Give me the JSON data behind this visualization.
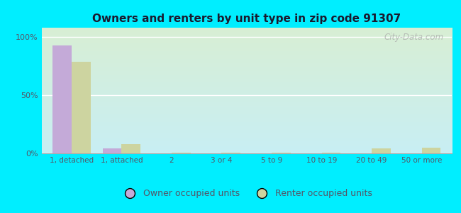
{
  "title": "Owners and renters by unit type in zip code 91307",
  "categories": [
    "1, detached",
    "1, attached",
    "2",
    "3 or 4",
    "5 to 9",
    "10 to 19",
    "20 to 49",
    "50 or more"
  ],
  "owner_values": [
    93,
    4,
    0,
    0.3,
    0.3,
    0.3,
    0.3,
    0.3
  ],
  "renter_values": [
    79,
    8,
    0.5,
    0.5,
    0.5,
    0.5,
    4,
    5
  ],
  "owner_color": "#c4aad8",
  "renter_color": "#cdd4a0",
  "background_outer": "#00eeff",
  "background_inner_topleft": "#d8efd4",
  "background_inner_bottomright": "#c8eef4",
  "ylabel_ticks": [
    "0%",
    "50%",
    "100%"
  ],
  "ytick_values": [
    0,
    50,
    100
  ],
  "ylim": [
    0,
    108
  ],
  "bar_width": 0.38,
  "watermark": "City-Data.com",
  "legend_owner": "Owner occupied units",
  "legend_renter": "Renter occupied units",
  "title_color": "#1a1a2e",
  "tick_color": "#555566"
}
